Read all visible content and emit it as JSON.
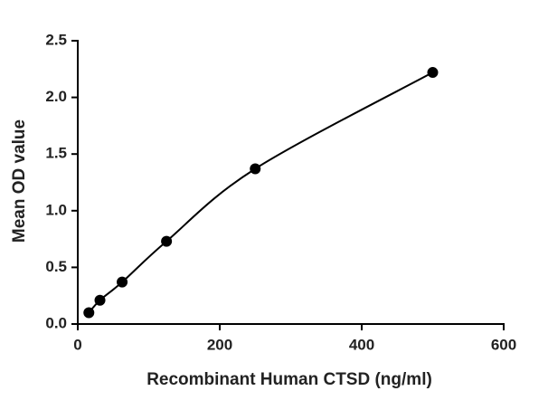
{
  "chart_data": {
    "type": "scatter",
    "x_label": "Recombinant Human CTSD (ng/ml)",
    "y_label": "Mean OD value",
    "x": [
      15.625,
      31.25,
      62.5,
      125,
      250,
      500
    ],
    "series": [
      {
        "values": [
          0.1,
          0.21,
          0.37,
          0.73,
          1.37,
          2.22
        ],
        "color": "#000000"
      }
    ],
    "xlim": [
      0,
      600
    ],
    "xticks": [
      0,
      200,
      400,
      600
    ],
    "ylim": [
      0,
      2.5
    ],
    "yticks": [
      {
        "value": 0,
        "label": "0.0"
      },
      0.5,
      {
        "value": 1,
        "label": "1.0"
      },
      1.5,
      {
        "value": 2,
        "label": "2.0"
      },
      2.5
    ],
    "grid": false
  }
}
